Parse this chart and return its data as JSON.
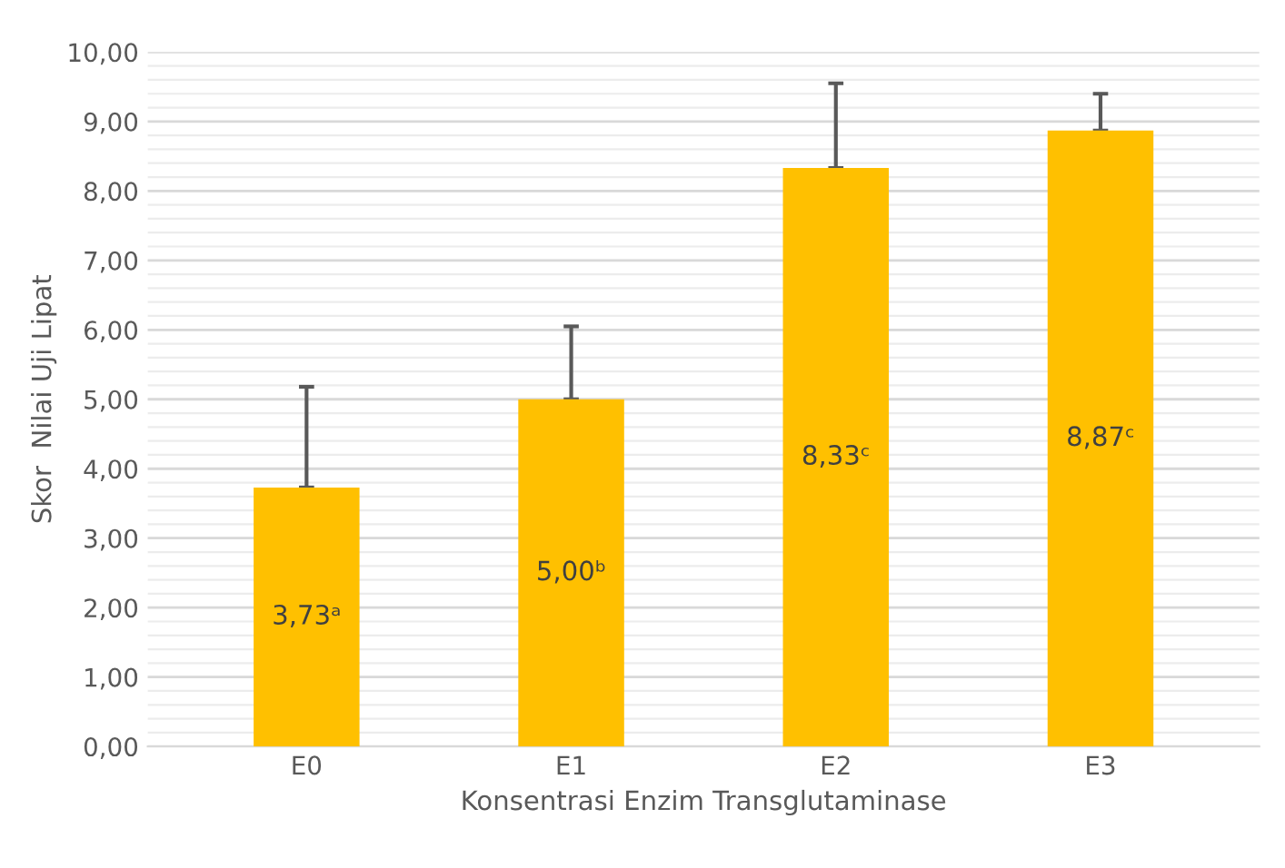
{
  "chart_data": {
    "type": "bar",
    "xlabel": "Konsentrasi Enzim Transglutaminase",
    "ylabel": "Skor  Nilai Uji Lipat",
    "categories": [
      "E0",
      "E1",
      "E2",
      "E3"
    ],
    "values": [
      3.73,
      5.0,
      8.33,
      8.87
    ],
    "color": "#ffc000",
    "errors": [
      [
        3.73,
        5.18
      ],
      [
        5.0,
        6.05
      ],
      [
        8.33,
        9.55
      ],
      [
        8.87,
        9.4
      ]
    ],
    "value_labels": [
      "3,73ᵃ",
      "5,00ᵇ",
      "8,33ᶜ",
      "8,87ᶜ"
    ],
    "ylim": [
      0,
      10
    ],
    "yticks": [
      {
        "value": 0,
        "label": "0,00"
      },
      {
        "value": 1,
        "label": "1,00"
      },
      {
        "value": 2,
        "label": "2,00"
      },
      {
        "value": 3,
        "label": "3,00"
      },
      {
        "value": 4,
        "label": "4,00"
      },
      {
        "value": 5,
        "label": "5,00"
      },
      {
        "value": 6,
        "label": "6,00"
      },
      {
        "value": 7,
        "label": "7,00"
      },
      {
        "value": 8,
        "label": "8,00"
      },
      {
        "value": 9,
        "label": "9,00"
      },
      {
        "value": 10,
        "label": "10,00"
      }
    ],
    "grid": "y",
    "legend": false
  }
}
